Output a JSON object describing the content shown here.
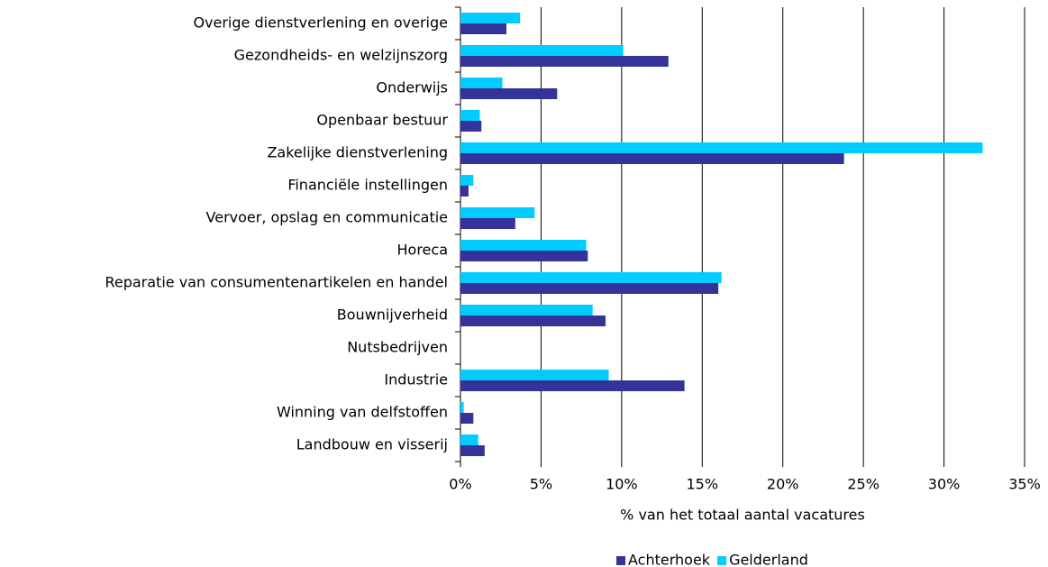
{
  "chart_data": {
    "type": "bar",
    "orientation": "horizontal",
    "xlabel": "% van het totaal aantal vacatures",
    "categories": [
      "Overige dienstverlening en overige",
      "Gezondheids- en welzijnszorg",
      "Onderwijs",
      "Openbaar bestuur",
      "Zakelijke dienstverlening",
      "Financiële instellingen",
      "Vervoer, opslag en communicatie",
      "Horeca",
      "Reparatie van consumentenartikelen en handel",
      "Bouwnijverheid",
      "Nutsbedrijven",
      "Industrie",
      "Winning van delfstoffen",
      "Landbouw en visserij"
    ],
    "series": [
      {
        "name": "Achterhoek",
        "color": "#333399",
        "values": [
          2.85,
          12.9,
          6.0,
          1.3,
          23.8,
          0.5,
          3.4,
          7.9,
          16.0,
          9.0,
          0,
          13.9,
          0.8,
          1.5
        ]
      },
      {
        "name": "Gelderland",
        "color": "#00ccff",
        "values": [
          3.7,
          10.1,
          2.6,
          1.2,
          32.4,
          0.8,
          4.6,
          7.8,
          16.2,
          8.2,
          0,
          9.2,
          0.2,
          1.1
        ]
      }
    ],
    "xlim": [
      0,
      35
    ],
    "xticks": [
      {
        "value": 0,
        "label": "0%"
      },
      {
        "value": 5,
        "label": "5%"
      },
      {
        "value": 10,
        "label": "10%"
      },
      {
        "value": 15,
        "label": "15%"
      },
      {
        "value": 20,
        "label": "20%"
      },
      {
        "value": 25,
        "label": "25%"
      },
      {
        "value": 30,
        "label": "30%"
      },
      {
        "value": 35,
        "label": "35%"
      }
    ],
    "grid": true,
    "legend": "bottom"
  }
}
